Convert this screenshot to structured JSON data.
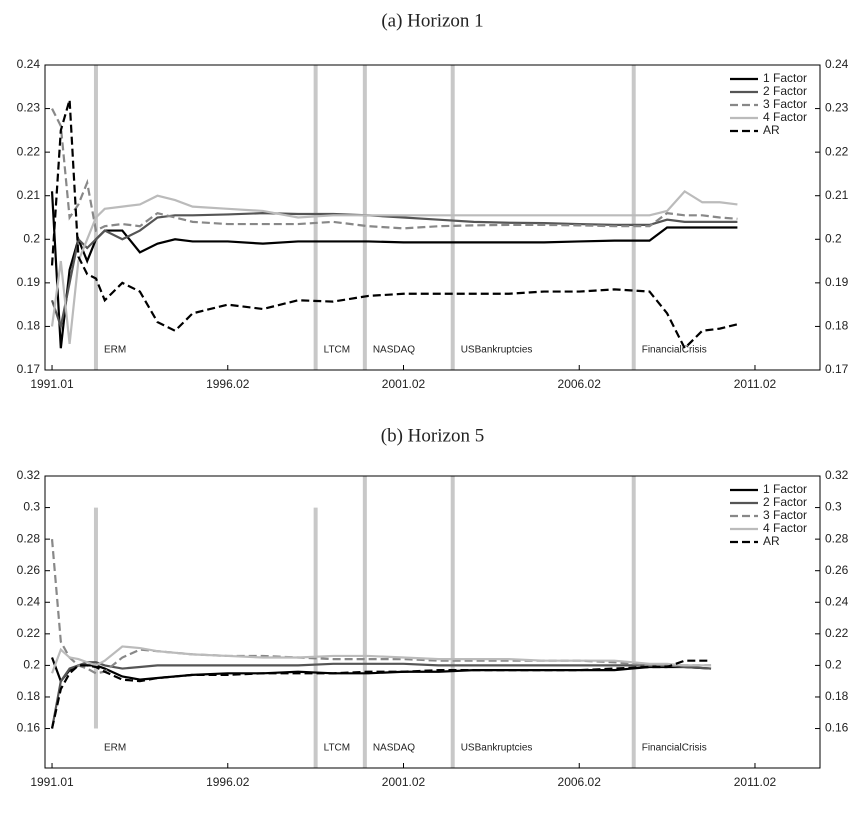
{
  "chart_data": [
    {
      "type": "line",
      "title": "(a) Horizon 1",
      "x": [
        1991.0,
        1991.25,
        1991.5,
        1991.75,
        1992.0,
        1992.25,
        1992.5,
        1993,
        1993.5,
        1994,
        1994.5,
        1995,
        1996,
        1997,
        1998,
        1999,
        2000,
        2001,
        2002,
        2003,
        2004,
        2005,
        2006,
        2007,
        2008,
        2008.5,
        2009,
        2009.5,
        2010,
        2010.5
      ],
      "xlim": [
        1990.8,
        2012.85
      ],
      "xticks": [
        {
          "value": 1991.0,
          "label": "1991.01"
        },
        {
          "value": 1996.0,
          "label": "1996.02"
        },
        {
          "value": 2001.0,
          "label": "2001.02"
        },
        {
          "value": 2006.0,
          "label": "2006.02"
        },
        {
          "value": 2011.0,
          "label": "2011.02"
        }
      ],
      "ylim": [
        0.17,
        0.24
      ],
      "yticks": [
        0.17,
        0.18,
        0.19,
        0.2,
        0.21,
        0.22,
        0.23,
        0.24
      ],
      "legend": "top-right",
      "series": [
        {
          "name": "1 Factor",
          "color": "#000000",
          "dashed": false,
          "values": [
            0.211,
            0.175,
            0.193,
            0.2,
            0.195,
            0.2,
            0.202,
            0.202,
            0.197,
            0.199,
            0.2,
            0.1995,
            0.1995,
            0.199,
            0.1995,
            0.1995,
            0.1995,
            0.1993,
            0.1993,
            0.1993,
            0.1993,
            0.1993,
            0.1995,
            0.1997,
            0.1997,
            0.2027,
            0.2027,
            0.2027,
            0.2027,
            0.2027
          ]
        },
        {
          "name": "2 Factor",
          "color": "#555555",
          "dashed": false,
          "values": [
            0.186,
            0.18,
            0.19,
            0.2,
            0.198,
            0.2,
            0.202,
            0.2,
            0.202,
            0.205,
            0.2055,
            0.2055,
            0.2057,
            0.206,
            0.2058,
            0.2058,
            0.2055,
            0.205,
            0.2045,
            0.204,
            0.2038,
            0.2037,
            0.2035,
            0.2033,
            0.2033,
            0.2045,
            0.204,
            0.204,
            0.204,
            0.204
          ]
        },
        {
          "name": "3 Factor",
          "color": "#888888",
          "dashed": true,
          "values": [
            0.23,
            0.226,
            0.205,
            0.208,
            0.213,
            0.202,
            0.203,
            0.2035,
            0.203,
            0.206,
            0.205,
            0.204,
            0.2035,
            0.2035,
            0.2035,
            0.204,
            0.203,
            0.2025,
            0.203,
            0.2032,
            0.2033,
            0.2033,
            0.2032,
            0.203,
            0.203,
            0.206,
            0.2055,
            0.2055,
            0.205,
            0.2047
          ]
        },
        {
          "name": "4 Factor",
          "color": "#bbbbbb",
          "dashed": false,
          "values": [
            0.18,
            0.195,
            0.176,
            0.195,
            0.2,
            0.205,
            0.207,
            0.2075,
            0.208,
            0.21,
            0.209,
            0.2075,
            0.207,
            0.2065,
            0.205,
            0.2055,
            0.2055,
            0.2055,
            0.2055,
            0.2055,
            0.2055,
            0.2055,
            0.2055,
            0.2055,
            0.2055,
            0.2065,
            0.211,
            0.2085,
            0.2085,
            0.208
          ]
        },
        {
          "name": "AR",
          "color": "#000000",
          "dashed": true,
          "values": [
            0.194,
            0.225,
            0.232,
            0.196,
            0.192,
            0.191,
            0.186,
            0.19,
            0.188,
            0.181,
            0.179,
            0.183,
            0.185,
            0.184,
            0.186,
            0.1857,
            0.187,
            0.1875,
            0.1875,
            0.1875,
            0.1875,
            0.188,
            0.188,
            0.1885,
            0.188,
            0.183,
            0.175,
            0.179,
            0.1795,
            0.1805
          ]
        }
      ],
      "events": [
        {
          "label": "ERM",
          "x": 1992.25
        },
        {
          "label": "LTCM",
          "x": 1998.5
        },
        {
          "label": "NASDAQ",
          "x": 1999.9
        },
        {
          "label": "USBankruptcies",
          "x": 2002.4
        },
        {
          "label": "FinancialCrisis",
          "x": 2007.55
        }
      ]
    },
    {
      "type": "line",
      "title": "(b) Horizon 5",
      "x": [
        1991.0,
        1991.25,
        1991.5,
        1991.75,
        1992.0,
        1992.25,
        1992.5,
        1993,
        1993.5,
        1994,
        1995,
        1996,
        1997,
        1998,
        1999,
        2000,
        2001,
        2002,
        2003,
        2004,
        2005,
        2006,
        2007,
        2008,
        2008.5,
        2009,
        2009.75
      ],
      "xlim": [
        1990.8,
        2012.85
      ],
      "xticks": [
        {
          "value": 1991.0,
          "label": "1991.01"
        },
        {
          "value": 1996.0,
          "label": "1996.02"
        },
        {
          "value": 2001.0,
          "label": "2001.02"
        },
        {
          "value": 2006.0,
          "label": "2006.02"
        },
        {
          "value": 2011.0,
          "label": "2011.02"
        }
      ],
      "ylim": [
        0.135,
        0.32
      ],
      "yticks": [
        0.16,
        0.18,
        0.2,
        0.22,
        0.24,
        0.26,
        0.28,
        0.3,
        0.32
      ],
      "legend": "top-right",
      "series": [
        {
          "name": "1 Factor",
          "color": "#000000",
          "dashed": false,
          "values": [
            0.205,
            0.19,
            0.197,
            0.2,
            0.2,
            0.2,
            0.198,
            0.193,
            0.191,
            0.192,
            0.194,
            0.195,
            0.195,
            0.196,
            0.195,
            0.195,
            0.196,
            0.196,
            0.197,
            0.197,
            0.197,
            0.197,
            0.197,
            0.199,
            0.199,
            0.199,
            0.198
          ]
        },
        {
          "name": "2 Factor",
          "color": "#555555",
          "dashed": false,
          "values": [
            0.16,
            0.19,
            0.198,
            0.2,
            0.202,
            0.202,
            0.2,
            0.198,
            0.199,
            0.2,
            0.2,
            0.2,
            0.2,
            0.2,
            0.201,
            0.201,
            0.201,
            0.2,
            0.2,
            0.2,
            0.2,
            0.2,
            0.2,
            0.2,
            0.2,
            0.199,
            0.198
          ]
        },
        {
          "name": "3 Factor",
          "color": "#888888",
          "dashed": true,
          "values": [
            0.28,
            0.215,
            0.205,
            0.2,
            0.198,
            0.195,
            0.196,
            0.205,
            0.21,
            0.209,
            0.207,
            0.206,
            0.206,
            0.205,
            0.204,
            0.204,
            0.204,
            0.203,
            0.203,
            0.203,
            0.203,
            0.203,
            0.202,
            0.2,
            0.2,
            0.2,
            0.2
          ]
        },
        {
          "name": "4 Factor",
          "color": "#bbbbbb",
          "dashed": false,
          "values": [
            0.195,
            0.21,
            0.205,
            0.204,
            0.202,
            0.2,
            0.203,
            0.212,
            0.211,
            0.209,
            0.207,
            0.206,
            0.205,
            0.205,
            0.206,
            0.206,
            0.205,
            0.204,
            0.204,
            0.204,
            0.203,
            0.203,
            0.203,
            0.201,
            0.201,
            0.2,
            0.2
          ]
        },
        {
          "name": "AR",
          "color": "#000000",
          "dashed": true,
          "values": [
            0.16,
            0.185,
            0.195,
            0.2,
            0.2,
            0.199,
            0.196,
            0.191,
            0.19,
            0.192,
            0.194,
            0.194,
            0.195,
            0.195,
            0.195,
            0.196,
            0.196,
            0.197,
            0.197,
            0.197,
            0.197,
            0.197,
            0.198,
            0.199,
            0.199,
            0.203,
            0.203
          ]
        }
      ],
      "events": [
        {
          "label": "ERM",
          "x": 1992.25,
          "y_range": [
            0.16,
            0.3
          ]
        },
        {
          "label": "LTCM",
          "x": 1998.5,
          "y_range": [
            0.135,
            0.3
          ]
        },
        {
          "label": "NASDAQ",
          "x": 1999.9
        },
        {
          "label": "USBankruptcies",
          "x": 2002.4
        },
        {
          "label": "FinancialCrisis",
          "x": 2007.55
        }
      ]
    }
  ]
}
